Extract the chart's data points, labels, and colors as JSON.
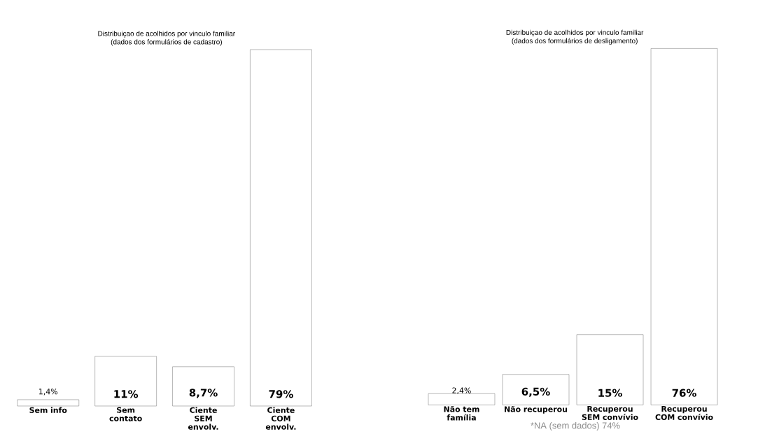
{
  "chart_data": [
    {
      "type": "bar",
      "title": "Distribuiçao de acolhidos por vinculo familiar",
      "subtitle": "(dados dos formulários de cadastro)",
      "categories": [
        "Sem info",
        "Sem contato",
        "Ciente SEM envolv.",
        "Ciente COM envolv."
      ],
      "values": [
        1.4,
        11,
        8.7,
        79
      ],
      "color": "#ffffff",
      "value_labels": [
        "1,4%",
        "11%",
        "8,7%",
        "79%"
      ]
    },
    {
      "type": "bar",
      "title": "Distribuiçao de acolhidos por vinculo familiar",
      "subtitle": "(dados dos formulários de desligamento)",
      "categories": [
        "Não tem família",
        "Não recuperou",
        "Recuperou SEM convívio",
        "Recuperou COM convívio"
      ],
      "values": [
        2.4,
        6.5,
        15,
        76
      ],
      "color": "#ffffff",
      "value_labels": [
        "2,4%",
        "6,5%",
        "15%",
        "76%"
      ],
      "annotations": [
        "*NA (sem dados) 74%"
      ]
    }
  ]
}
